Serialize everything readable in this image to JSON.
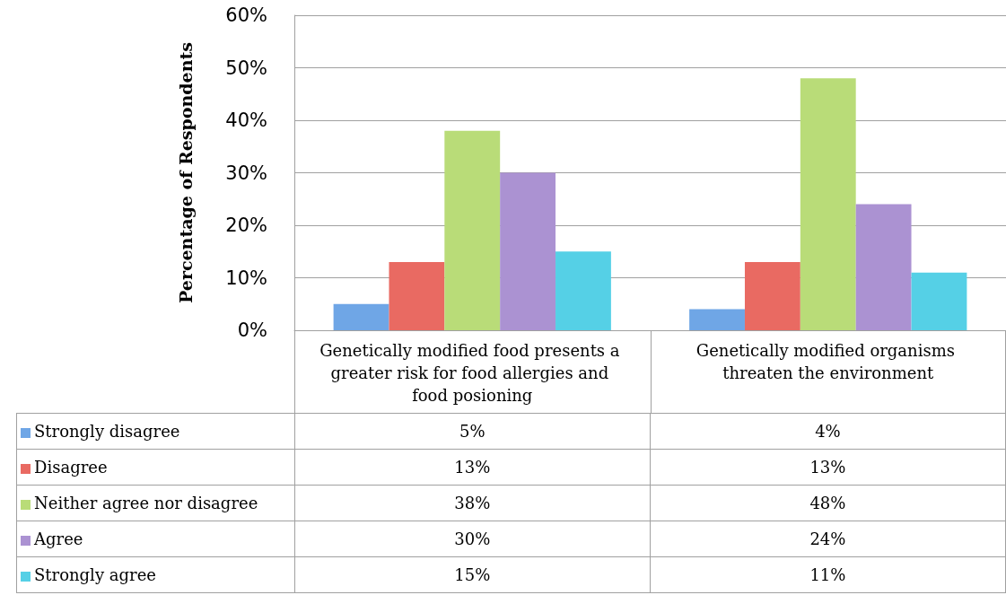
{
  "chart_data": {
    "type": "bar",
    "ylabel": "Percentage of Respondents",
    "categories": [
      "Genetically modified food presents a greater risk for food allergies and food posioning",
      "Genetically modified organisms threaten the environment"
    ],
    "series": [
      {
        "name": "Strongly disagree",
        "color": "#6fa6e6",
        "values": [
          5,
          4
        ],
        "value_labels": [
          "5%",
          "4%"
        ]
      },
      {
        "name": "Disagree",
        "color": "#e96a62",
        "values": [
          13,
          13
        ],
        "value_labels": [
          "13%",
          "13%"
        ]
      },
      {
        "name": "Neither agree nor disagree",
        "color": "#b9dc78",
        "values": [
          38,
          48
        ],
        "value_labels": [
          "38%",
          "48%"
        ]
      },
      {
        "name": "Agree",
        "color": "#ab92d2",
        "values": [
          30,
          24
        ],
        "value_labels": [
          "30%",
          "24%"
        ]
      },
      {
        "name": "Strongly agree",
        "color": "#55d0e6",
        "values": [
          15,
          11
        ],
        "value_labels": [
          "15%",
          "11%"
        ]
      }
    ],
    "ylim": [
      0,
      60
    ],
    "yticks": [
      {
        "value": 0,
        "label": "0%"
      },
      {
        "value": 10,
        "label": "10%"
      },
      {
        "value": 20,
        "label": "20%"
      },
      {
        "value": 30,
        "label": "30%"
      },
      {
        "value": 40,
        "label": "40%"
      },
      {
        "value": 50,
        "label": "50%"
      },
      {
        "value": 60,
        "label": "60%"
      }
    ],
    "grid": "y",
    "legend": "bottom"
  }
}
